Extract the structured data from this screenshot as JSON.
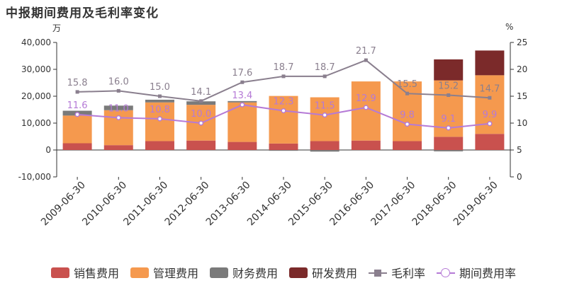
{
  "title": "中报期间费用及毛利率变化",
  "units": {
    "left": "万",
    "right": "%"
  },
  "colors": {
    "sales": "#c9514e",
    "admin": "#f5994e",
    "finance": "#7a7a7a",
    "rd": "#7b2a2a",
    "gross": "#8a7f8e",
    "period": "#b57ad6"
  },
  "chart_data": {
    "type": "bar",
    "stacked": true,
    "title": "中报期间费用及毛利率变化",
    "categories": [
      "2009-06-30",
      "2010-06-30",
      "2011-06-30",
      "2012-06-30",
      "2013-06-30",
      "2014-06-30",
      "2015-06-30",
      "2016-06-30",
      "2017-06-30",
      "2018-06-30",
      "2019-06-30"
    ],
    "series": [
      {
        "name": "销售费用",
        "type": "bar",
        "axis": "left",
        "values": [
          2500,
          1800,
          3300,
          3500,
          3000,
          2400,
          3300,
          3500,
          3300,
          4900,
          6000
        ]
      },
      {
        "name": "管理费用",
        "type": "bar",
        "axis": "left",
        "values": [
          10300,
          13000,
          14400,
          13300,
          14700,
          17700,
          16300,
          22000,
          22200,
          21000,
          21800
        ]
      },
      {
        "name": "财务费用",
        "type": "bar",
        "axis": "left",
        "values": [
          1800,
          1700,
          1000,
          1300,
          500,
          -300,
          -600,
          0,
          -200,
          -500,
          0
        ]
      },
      {
        "name": "研发费用",
        "type": "bar",
        "axis": "left",
        "values": [
          0,
          0,
          0,
          0,
          0,
          0,
          0,
          0,
          0,
          7800,
          9200
        ]
      },
      {
        "name": "毛利率",
        "type": "line",
        "axis": "right",
        "values": [
          15.8,
          16.0,
          15.0,
          14.1,
          17.6,
          18.7,
          18.7,
          21.7,
          15.5,
          15.2,
          14.7
        ]
      },
      {
        "name": "期间费用率",
        "type": "line",
        "axis": "right",
        "values": [
          11.6,
          11.0,
          10.8,
          10.0,
          13.4,
          12.3,
          11.5,
          12.9,
          9.8,
          9.1,
          9.9
        ]
      }
    ],
    "y_left": {
      "min": -10000,
      "max": 40000,
      "ticks": [
        -10000,
        0,
        10000,
        20000,
        30000,
        40000
      ],
      "tick_labels": [
        "-10,000",
        "0",
        "10,000",
        "20,000",
        "30,000",
        "40,000"
      ]
    },
    "y_right": {
      "min": 0,
      "max": 25,
      "ticks": [
        0,
        5,
        10,
        15,
        20,
        25
      ],
      "tick_labels": [
        "0",
        "5",
        "10",
        "15",
        "20",
        "25"
      ]
    },
    "grid": false,
    "legend_position": "bottom-center"
  }
}
